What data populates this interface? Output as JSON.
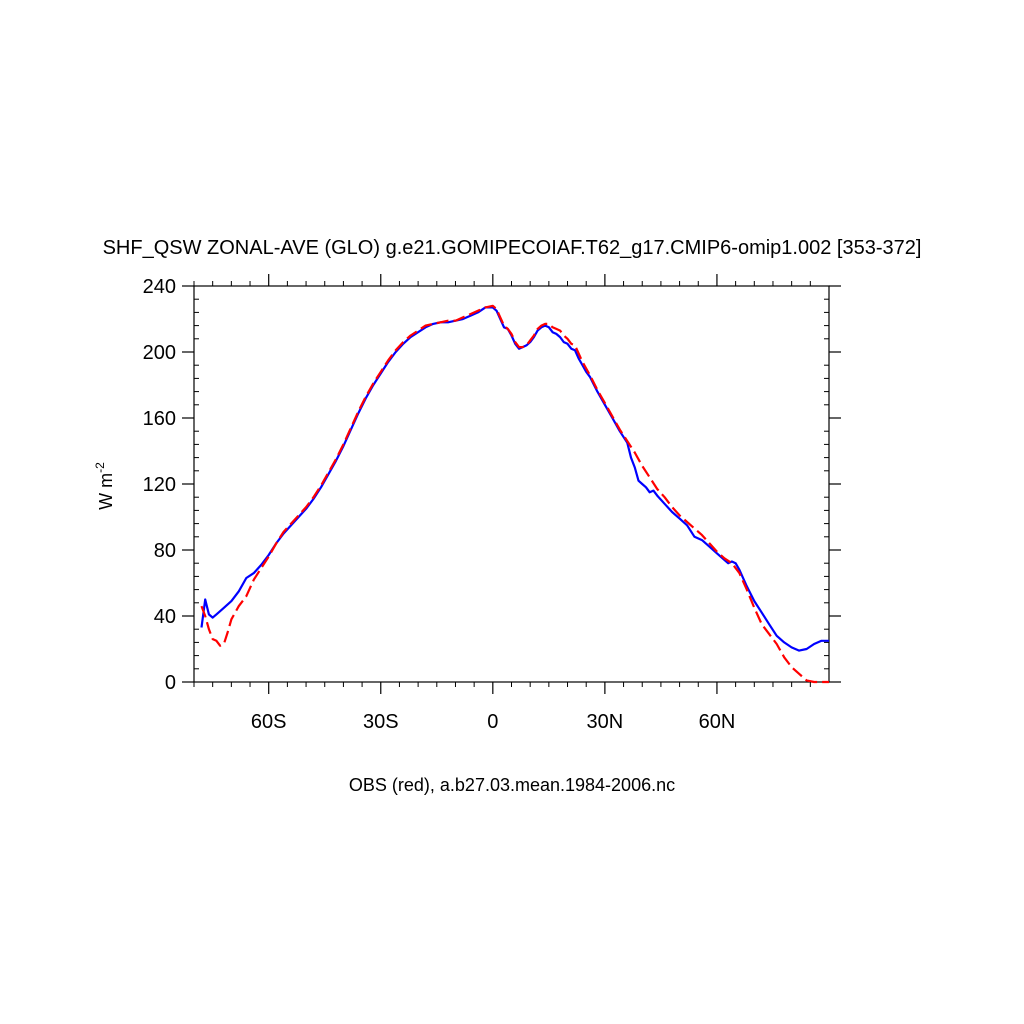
{
  "chart_data": {
    "type": "line",
    "title": "SHF_QSW ZONAL-AVE (GLO) g.e21.GOMIPECOIAF.T62_g17.CMIP6-omip1.002 [353-372]",
    "ylabel": "W m",
    "ylabel_superscript": "-2",
    "xlabel": "OBS (red), a.b27.03.mean.1984-2006.nc",
    "xlim": [
      -80,
      90
    ],
    "ylim": [
      0,
      240
    ],
    "grid": false,
    "x_ticks": [
      {
        "value": -60,
        "label": "60S"
      },
      {
        "value": -30,
        "label": "30S"
      },
      {
        "value": 0,
        "label": "0"
      },
      {
        "value": 30,
        "label": "30N"
      },
      {
        "value": 60,
        "label": "60N"
      }
    ],
    "y_ticks": [
      {
        "value": 0,
        "label": "0"
      },
      {
        "value": 40,
        "label": "40"
      },
      {
        "value": 80,
        "label": "80"
      },
      {
        "value": 120,
        "label": "120"
      },
      {
        "value": 160,
        "label": "160"
      },
      {
        "value": 200,
        "label": "200"
      },
      {
        "value": 240,
        "label": "240"
      }
    ],
    "series": [
      {
        "color": "#0000ff",
        "dash": "solid",
        "points": [
          [
            -78,
            33
          ],
          [
            -77,
            50
          ],
          [
            -76,
            41
          ],
          [
            -75,
            39
          ],
          [
            -74,
            41
          ],
          [
            -72,
            45
          ],
          [
            -70,
            49
          ],
          [
            -68,
            55
          ],
          [
            -66,
            63
          ],
          [
            -64,
            66
          ],
          [
            -62,
            71
          ],
          [
            -60,
            77
          ],
          [
            -58,
            84
          ],
          [
            -56,
            90
          ],
          [
            -54,
            95
          ],
          [
            -52,
            100
          ],
          [
            -50,
            105
          ],
          [
            -48,
            111
          ],
          [
            -46,
            118
          ],
          [
            -44,
            126
          ],
          [
            -42,
            134
          ],
          [
            -40,
            143
          ],
          [
            -38,
            153
          ],
          [
            -36,
            163
          ],
          [
            -34,
            172
          ],
          [
            -32,
            180
          ],
          [
            -30,
            187
          ],
          [
            -28,
            194
          ],
          [
            -26,
            200
          ],
          [
            -24,
            205
          ],
          [
            -22,
            209
          ],
          [
            -20,
            212
          ],
          [
            -18,
            215
          ],
          [
            -16,
            217
          ],
          [
            -14,
            218
          ],
          [
            -12,
            218
          ],
          [
            -10,
            219
          ],
          [
            -8,
            220
          ],
          [
            -6,
            222
          ],
          [
            -4,
            224
          ],
          [
            -2,
            227
          ],
          [
            0,
            227
          ],
          [
            1,
            225
          ],
          [
            2,
            220
          ],
          [
            3,
            215
          ],
          [
            4,
            214
          ],
          [
            5,
            210
          ],
          [
            6,
            205
          ],
          [
            7,
            202
          ],
          [
            8,
            203
          ],
          [
            9,
            204
          ],
          [
            10,
            206
          ],
          [
            11,
            209
          ],
          [
            12,
            213
          ],
          [
            13,
            215
          ],
          [
            14,
            216
          ],
          [
            15,
            215
          ],
          [
            16,
            212
          ],
          [
            17,
            211
          ],
          [
            18,
            209
          ],
          [
            19,
            206
          ],
          [
            20,
            205
          ],
          [
            21,
            202
          ],
          [
            22,
            201
          ],
          [
            23,
            196
          ],
          [
            24,
            192
          ],
          [
            25,
            188
          ],
          [
            26,
            185
          ],
          [
            28,
            176
          ],
          [
            30,
            168
          ],
          [
            32,
            160
          ],
          [
            34,
            152
          ],
          [
            36,
            145
          ],
          [
            37,
            136
          ],
          [
            38,
            130
          ],
          [
            39,
            122
          ],
          [
            40,
            120
          ],
          [
            41,
            118
          ],
          [
            42,
            115
          ],
          [
            43,
            116
          ],
          [
            44,
            113
          ],
          [
            46,
            108
          ],
          [
            48,
            103
          ],
          [
            50,
            99
          ],
          [
            52,
            95
          ],
          [
            54,
            88
          ],
          [
            56,
            86
          ],
          [
            58,
            82
          ],
          [
            60,
            78
          ],
          [
            62,
            74
          ],
          [
            63,
            72
          ],
          [
            64,
            73
          ],
          [
            65,
            72
          ],
          [
            66,
            68
          ],
          [
            68,
            58
          ],
          [
            70,
            49
          ],
          [
            72,
            42
          ],
          [
            74,
            35
          ],
          [
            76,
            28
          ],
          [
            78,
            24
          ],
          [
            80,
            21
          ],
          [
            82,
            19
          ],
          [
            84,
            20
          ],
          [
            86,
            23
          ],
          [
            88,
            25
          ],
          [
            90,
            25
          ]
        ]
      },
      {
        "color": "#ff0000",
        "dash": "dashed",
        "points": [
          [
            -78,
            46
          ],
          [
            -77,
            40
          ],
          [
            -76,
            32
          ],
          [
            -75,
            26
          ],
          [
            -74,
            25
          ],
          [
            -73,
            22
          ],
          [
            -72,
            23
          ],
          [
            -71,
            30
          ],
          [
            -70,
            38
          ],
          [
            -68,
            46
          ],
          [
            -66,
            52
          ],
          [
            -64,
            62
          ],
          [
            -62,
            69
          ],
          [
            -60,
            76
          ],
          [
            -58,
            84
          ],
          [
            -56,
            91
          ],
          [
            -54,
            96
          ],
          [
            -52,
            101
          ],
          [
            -50,
            106
          ],
          [
            -48,
            112
          ],
          [
            -46,
            119
          ],
          [
            -44,
            127
          ],
          [
            -42,
            135
          ],
          [
            -40,
            144
          ],
          [
            -38,
            154
          ],
          [
            -36,
            164
          ],
          [
            -34,
            173
          ],
          [
            -32,
            181
          ],
          [
            -30,
            188
          ],
          [
            -28,
            195
          ],
          [
            -26,
            201
          ],
          [
            -24,
            206
          ],
          [
            -22,
            210
          ],
          [
            -20,
            213
          ],
          [
            -18,
            216
          ],
          [
            -16,
            217
          ],
          [
            -14,
            218
          ],
          [
            -12,
            219
          ],
          [
            -10,
            219
          ],
          [
            -8,
            221
          ],
          [
            -6,
            223
          ],
          [
            -4,
            225
          ],
          [
            -2,
            227
          ],
          [
            0,
            228
          ],
          [
            1,
            226
          ],
          [
            2,
            221
          ],
          [
            3,
            216
          ],
          [
            4,
            214
          ],
          [
            5,
            211
          ],
          [
            6,
            206
          ],
          [
            7,
            203
          ],
          [
            8,
            203
          ],
          [
            9,
            204
          ],
          [
            10,
            207
          ],
          [
            11,
            210
          ],
          [
            12,
            214
          ],
          [
            13,
            216
          ],
          [
            14,
            217
          ],
          [
            15,
            217
          ],
          [
            16,
            215
          ],
          [
            17,
            214
          ],
          [
            18,
            213
          ],
          [
            19,
            210
          ],
          [
            20,
            208
          ],
          [
            21,
            205
          ],
          [
            22,
            204
          ],
          [
            23,
            199
          ],
          [
            24,
            194
          ],
          [
            25,
            190
          ],
          [
            26,
            186
          ],
          [
            28,
            177
          ],
          [
            30,
            169
          ],
          [
            32,
            161
          ],
          [
            34,
            153
          ],
          [
            36,
            146
          ],
          [
            38,
            139
          ],
          [
            40,
            131
          ],
          [
            42,
            124
          ],
          [
            44,
            117
          ],
          [
            46,
            112
          ],
          [
            48,
            106
          ],
          [
            50,
            101
          ],
          [
            52,
            97
          ],
          [
            54,
            93
          ],
          [
            56,
            89
          ],
          [
            58,
            84
          ],
          [
            60,
            79
          ],
          [
            62,
            75
          ],
          [
            64,
            72
          ],
          [
            66,
            66
          ],
          [
            68,
            56
          ],
          [
            70,
            45
          ],
          [
            72,
            35
          ],
          [
            74,
            29
          ],
          [
            76,
            23
          ],
          [
            78,
            15
          ],
          [
            80,
            9
          ],
          [
            82,
            5
          ],
          [
            84,
            1
          ],
          [
            86,
            0
          ],
          [
            88,
            0
          ],
          [
            90,
            0
          ]
        ]
      }
    ]
  }
}
